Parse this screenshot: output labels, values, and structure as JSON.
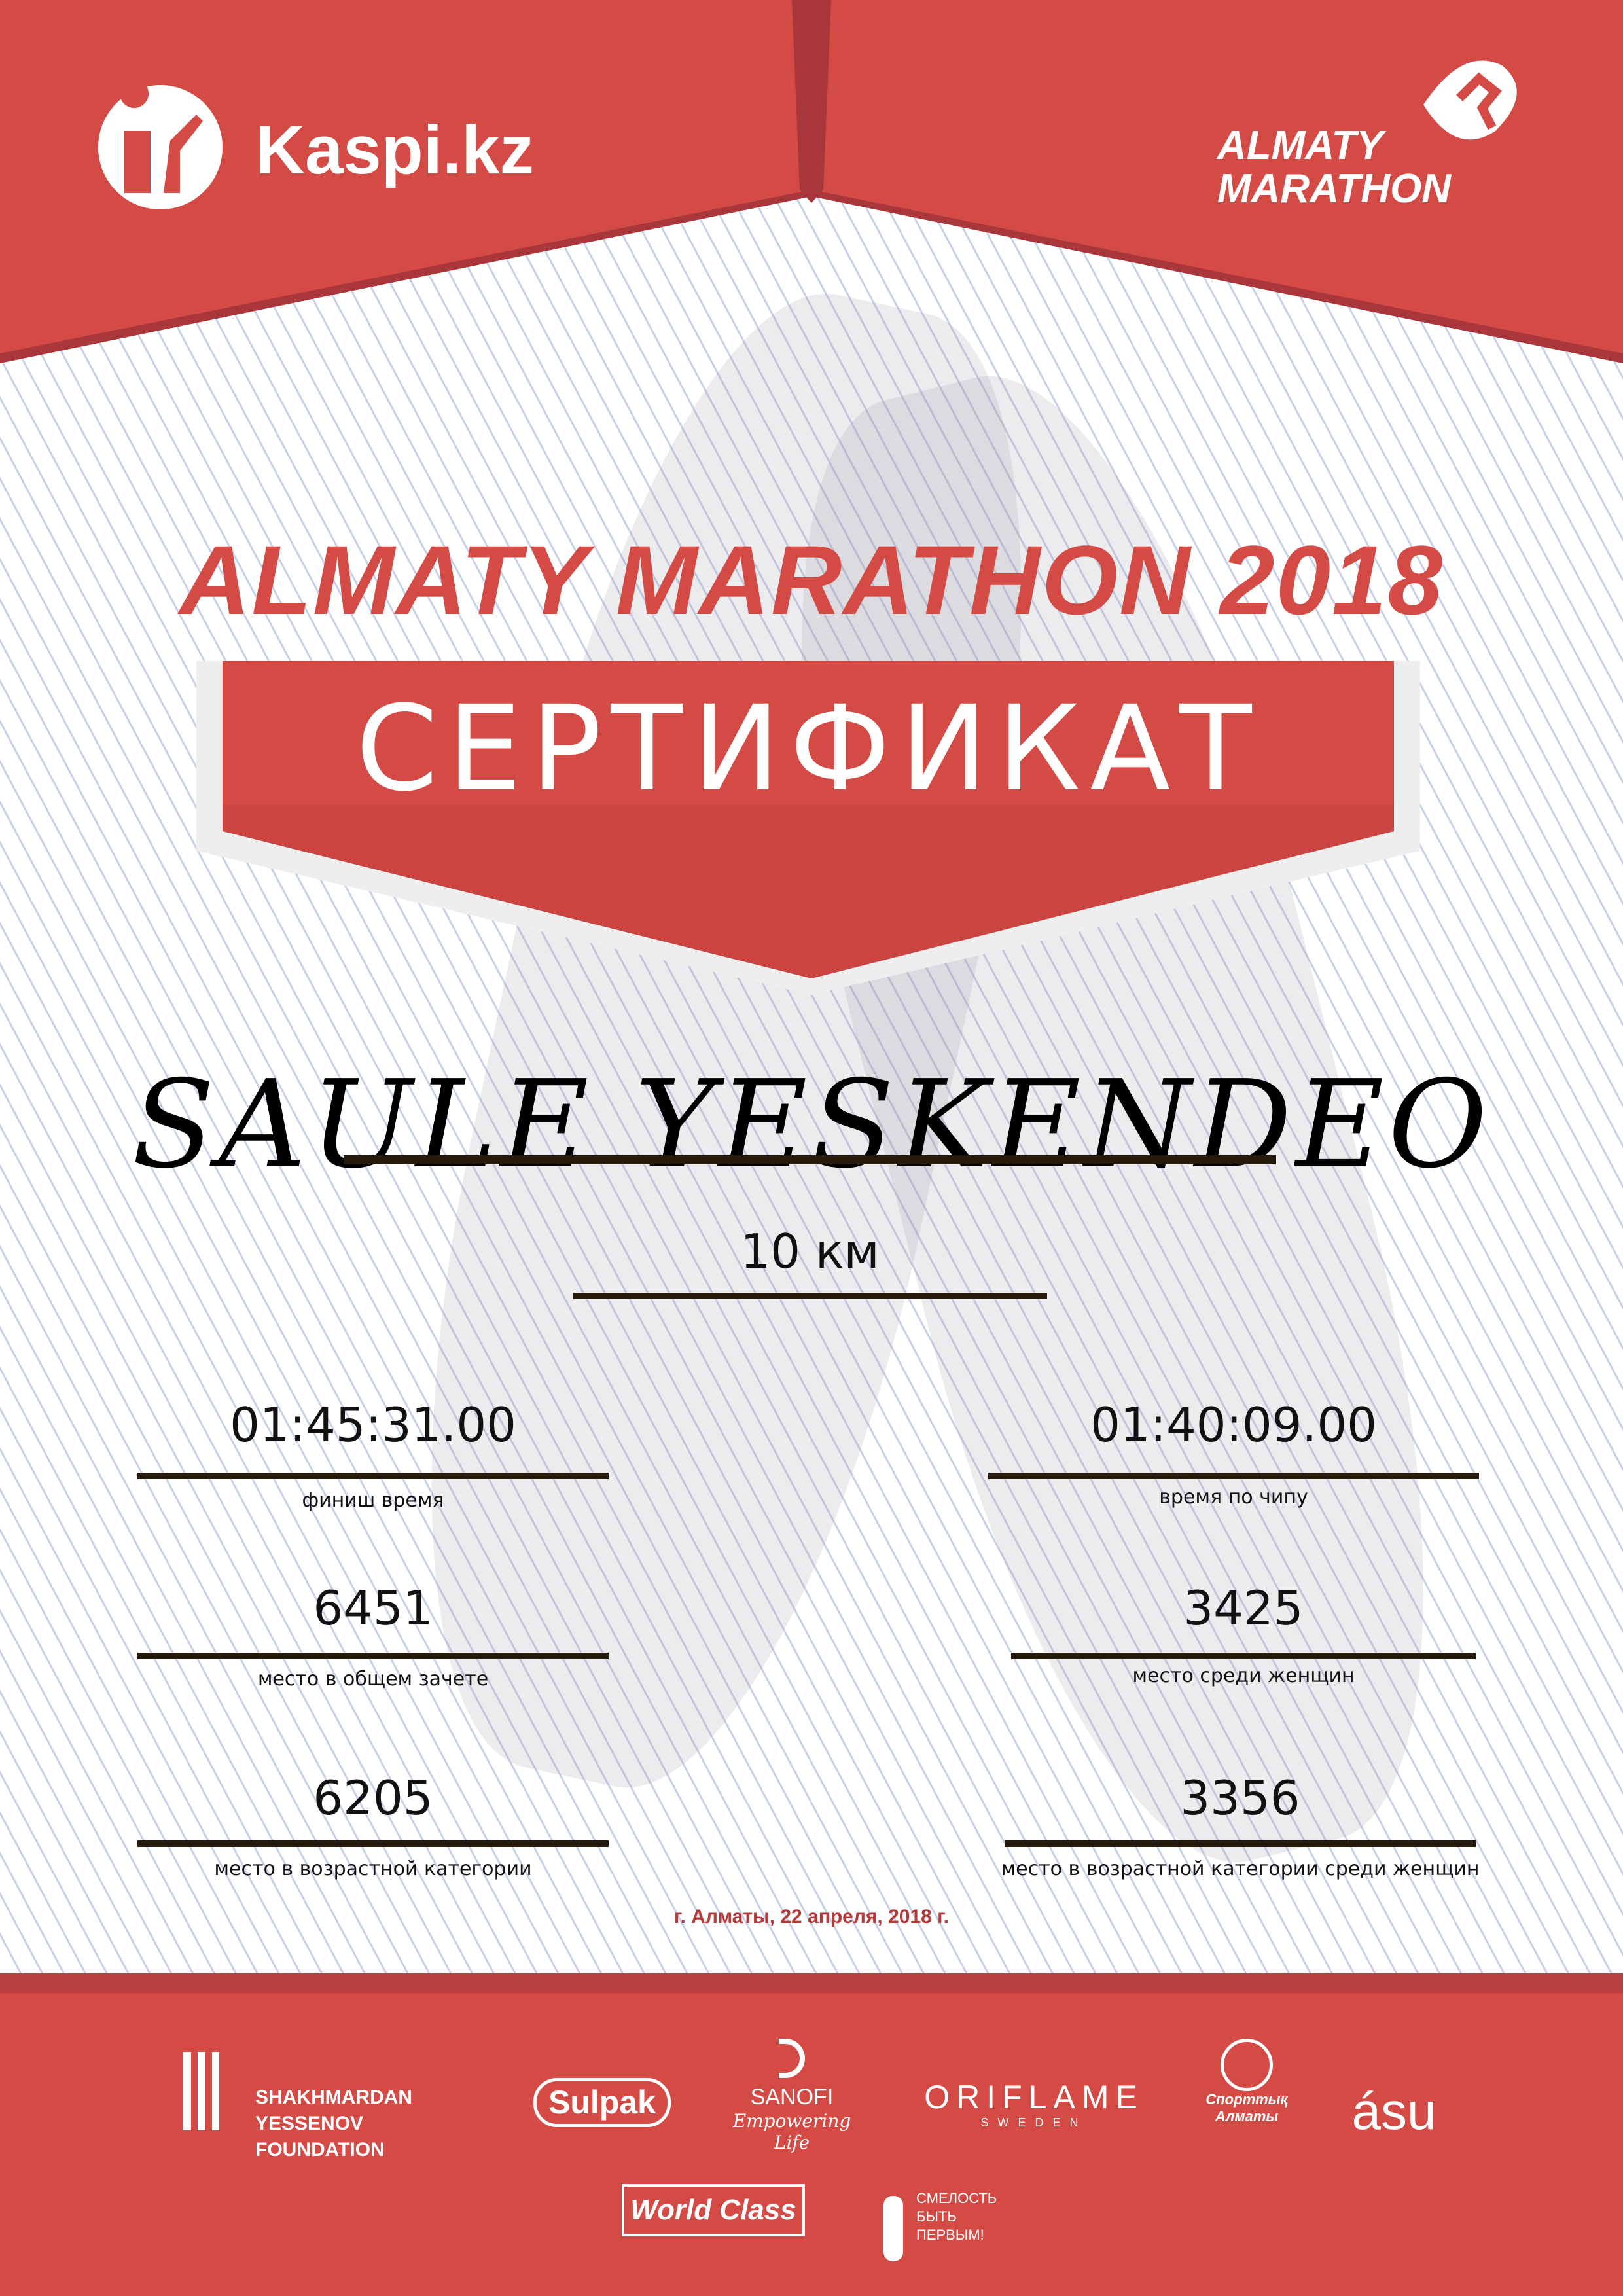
{
  "colors": {
    "brand_red": "#d44b45",
    "dark_red": "#a8363a",
    "line": "#251a0c"
  },
  "header": {
    "kaspi_logo": "Kaspi.kz",
    "marathon_logo": [
      "ALMATY",
      "MARATHON"
    ]
  },
  "title": "ALMATY MARATHON 2018",
  "certificate_label": "СЕРТИФИКАТ",
  "participant_name": "SAULE YESKENDEO",
  "distance": "10 км",
  "results": [
    {
      "value": "01:45:31.00",
      "label": "финиш время"
    },
    {
      "value": "01:40:09.00",
      "label": "время по чипу"
    },
    {
      "value": "6451",
      "label": "место в общем зачете"
    },
    {
      "value": "3425",
      "label": "место среди женщин"
    },
    {
      "value": "6205",
      "label": "место в возрастной категории"
    },
    {
      "value": "3356",
      "label": "место в возрастной категории среди женщин"
    }
  ],
  "date": "г. Алматы, 22 апреля, 2018 г.",
  "sponsors": {
    "yessenov": [
      "SHAKHMARDAN YESSENOV",
      "FOUNDATION"
    ],
    "sulpak": "Sulpak",
    "sanofi": "SANOFI",
    "sanofi_tagline": "Empowering Life",
    "oriflame": "ORIFLAME",
    "oriflame_sub": "SWEDEN",
    "sport_almaty": "Спорттық Алматы",
    "asu": "ásu",
    "worldclass": "World Class",
    "fund": [
      "СМЕЛОСТЬ",
      "БЫТЬ",
      "ПЕРВЫМ!"
    ]
  }
}
